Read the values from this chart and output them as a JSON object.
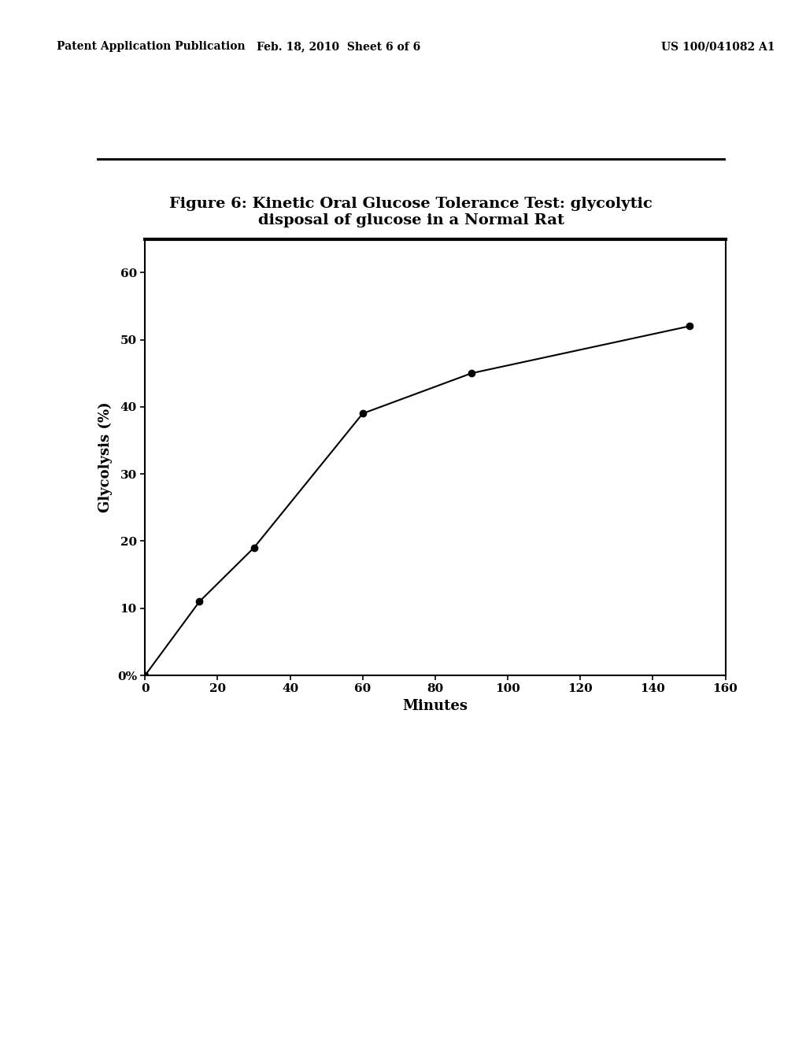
{
  "title_line1": "Figure 6: Kinetic Oral Glucose Tolerance Test: glycolytic",
  "title_line2": "disposal of glucose in a Normal Rat",
  "xlabel": "Minutes",
  "ylabel": "Glycolysis (%)",
  "x_data": [
    0,
    15,
    30,
    60,
    90,
    150
  ],
  "y_data": [
    0,
    11,
    19,
    39,
    45,
    52
  ],
  "xlim": [
    0,
    160
  ],
  "ylim": [
    0,
    65
  ],
  "xticks": [
    0,
    20,
    40,
    60,
    80,
    100,
    120,
    140,
    160
  ],
  "yticks": [
    0,
    10,
    20,
    30,
    40,
    50,
    60
  ],
  "ytick_labels": [
    "0%",
    "10",
    "20",
    "30",
    "40",
    "50",
    "60"
  ],
  "line_color": "#000000",
  "marker": "o",
  "marker_size": 6,
  "background_color": "#ffffff",
  "header_left": "Patent Application Publication",
  "header_center": "Feb. 18, 2010  Sheet 6 of 6",
  "header_right": "US 100/041082 A1",
  "title_fontsize": 14,
  "axis_label_fontsize": 13,
  "tick_fontsize": 11,
  "header_fontsize": 10
}
